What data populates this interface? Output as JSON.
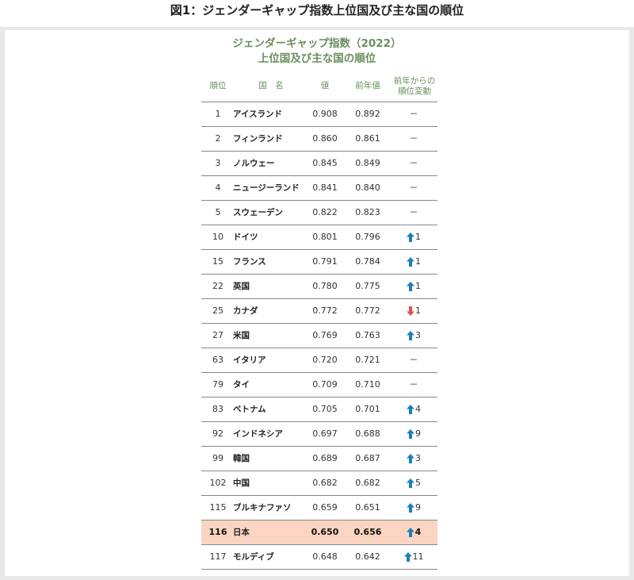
{
  "figure_title": "図1：ジェンダーギャップ指数上位国及び主な国の順位",
  "chart_title_line1": "ジェンダーギャップ指数（2022）",
  "chart_title_line2": "上位国及び主な国の順位",
  "headers": {
    "rank": "順位",
    "country": "国　名",
    "value": "値",
    "prev_value": "前年値",
    "change_line1": "前年からの",
    "change_line2": "順位変動"
  },
  "colors": {
    "accent": "#6a8f5f",
    "up": "#1e7fb8",
    "down": "#e0504a",
    "highlight": "#fcd5c2"
  },
  "rows": [
    {
      "rank": "1",
      "country": "アイスランド",
      "value": "0.908",
      "prev": "0.892",
      "dir": "none",
      "change": "－"
    },
    {
      "rank": "2",
      "country": "フィンランド",
      "value": "0.860",
      "prev": "0.861",
      "dir": "none",
      "change": "－"
    },
    {
      "rank": "3",
      "country": "ノルウェー",
      "value": "0.845",
      "prev": "0.849",
      "dir": "none",
      "change": "－"
    },
    {
      "rank": "4",
      "country": "ニュージーランド",
      "value": "0.841",
      "prev": "0.840",
      "dir": "none",
      "change": "－"
    },
    {
      "rank": "5",
      "country": "スウェーデン",
      "value": "0.822",
      "prev": "0.823",
      "dir": "none",
      "change": "－"
    },
    {
      "rank": "10",
      "country": "ドイツ",
      "value": "0.801",
      "prev": "0.796",
      "dir": "up",
      "change": "1"
    },
    {
      "rank": "15",
      "country": "フランス",
      "value": "0.791",
      "prev": "0.784",
      "dir": "up",
      "change": "1"
    },
    {
      "rank": "22",
      "country": "英国",
      "value": "0.780",
      "prev": "0.775",
      "dir": "up",
      "change": "1"
    },
    {
      "rank": "25",
      "country": "カナダ",
      "value": "0.772",
      "prev": "0.772",
      "dir": "down",
      "change": "1"
    },
    {
      "rank": "27",
      "country": "米国",
      "value": "0.769",
      "prev": "0.763",
      "dir": "up",
      "change": "3"
    },
    {
      "rank": "63",
      "country": "イタリア",
      "value": "0.720",
      "prev": "0.721",
      "dir": "none",
      "change": "－"
    },
    {
      "rank": "79",
      "country": "タイ",
      "value": "0.709",
      "prev": "0.710",
      "dir": "none",
      "change": "－"
    },
    {
      "rank": "83",
      "country": "ベトナム",
      "value": "0.705",
      "prev": "0.701",
      "dir": "up",
      "change": "4"
    },
    {
      "rank": "92",
      "country": "インドネシア",
      "value": "0.697",
      "prev": "0.688",
      "dir": "up",
      "change": "9"
    },
    {
      "rank": "99",
      "country": "韓国",
      "value": "0.689",
      "prev": "0.687",
      "dir": "up",
      "change": "3"
    },
    {
      "rank": "102",
      "country": "中国",
      "value": "0.682",
      "prev": "0.682",
      "dir": "up",
      "change": "5"
    },
    {
      "rank": "115",
      "country": "ブルキナファソ",
      "value": "0.659",
      "prev": "0.651",
      "dir": "up",
      "change": "9"
    },
    {
      "rank": "116",
      "country": "日本",
      "value": "0.650",
      "prev": "0.656",
      "dir": "up",
      "change": "4",
      "highlight": true
    },
    {
      "rank": "117",
      "country": "モルディブ",
      "value": "0.648",
      "prev": "0.642",
      "dir": "up",
      "change": "11"
    }
  ]
}
